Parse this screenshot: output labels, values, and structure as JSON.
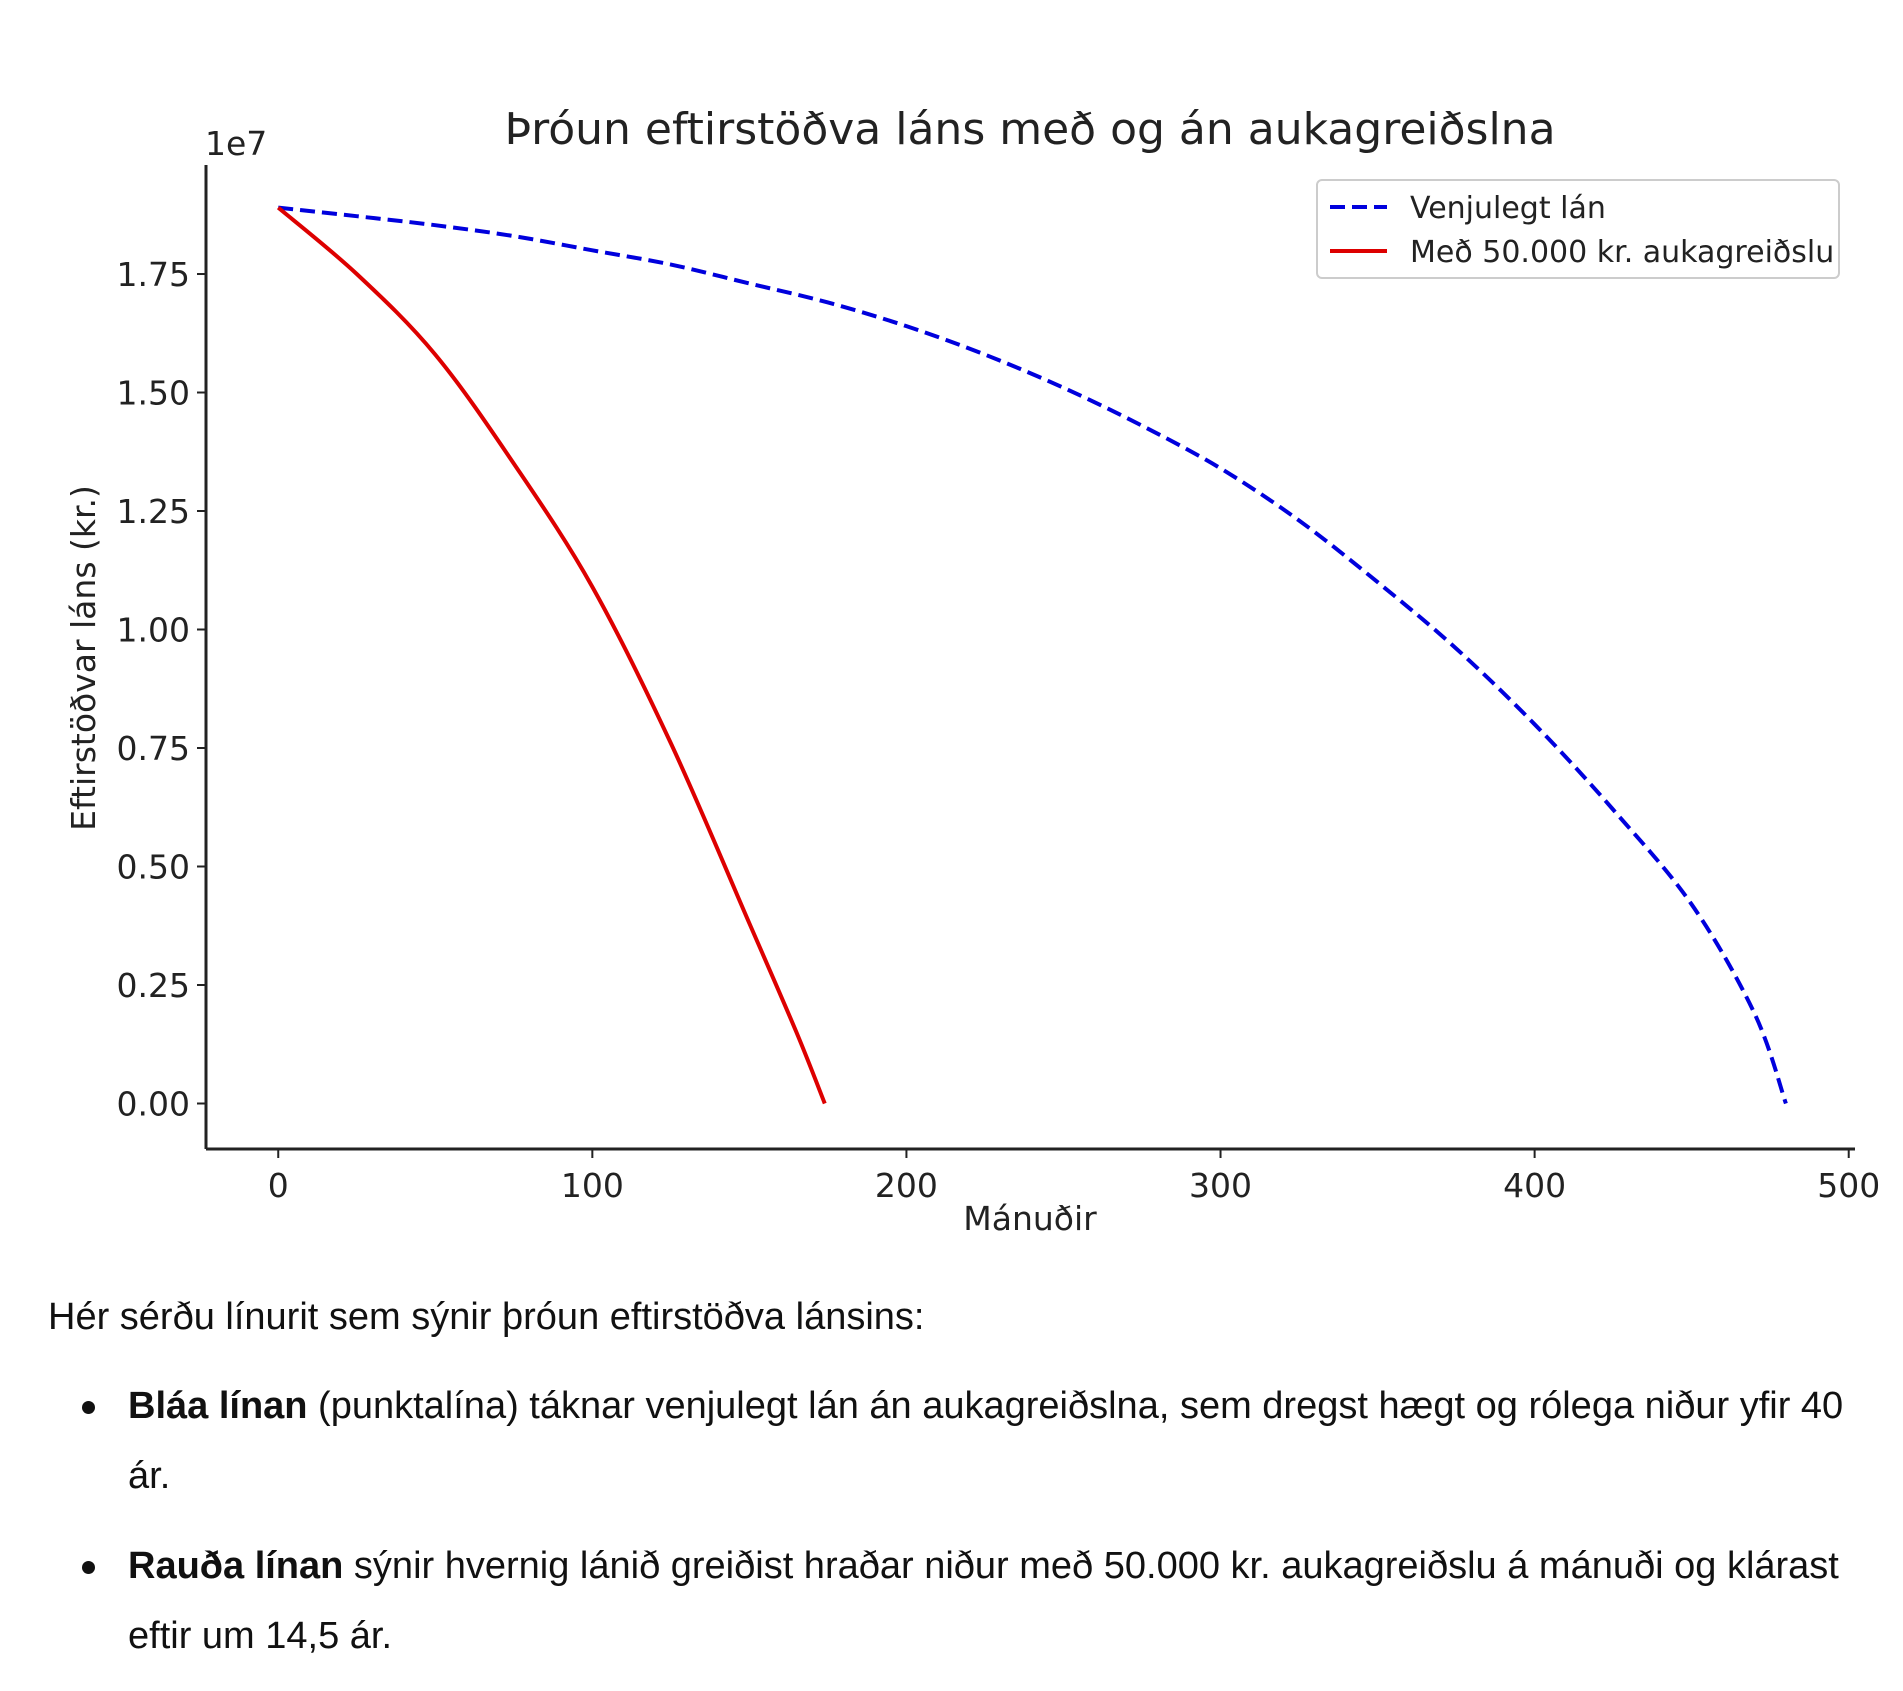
{
  "chart_data": {
    "type": "line",
    "title": "Þróun eftirstöðva láns með og án aukagreiðslna",
    "xlabel": "Mánuðir",
    "ylabel": "Eftirstöðvar láns (kr.)",
    "y_offset_text": "1e7",
    "xlim": [
      -23,
      502
    ],
    "ylim": [
      -960000,
      19800000
    ],
    "x_ticks": [
      0,
      100,
      200,
      300,
      400,
      500
    ],
    "y_ticks": [
      0,
      2500000,
      5000000,
      7500000,
      10000000,
      12500000,
      15000000,
      17500000
    ],
    "y_tick_labels": [
      "0.00",
      "0.25",
      "0.50",
      "0.75",
      "1.00",
      "1.25",
      "1.50",
      "1.75"
    ],
    "grid": false,
    "legend_position": "top-right",
    "series": [
      {
        "name": "Venjulegt lán",
        "color": "#0000dd",
        "style": "dashed",
        "x": [
          0,
          25,
          50,
          75,
          100,
          125,
          150,
          175,
          200,
          225,
          250,
          275,
          300,
          325,
          350,
          375,
          400,
          425,
          450,
          470,
          480
        ],
        "y": [
          18900000,
          18720000,
          18530000,
          18300000,
          18000000,
          17700000,
          17300000,
          16900000,
          16400000,
          15800000,
          15100000,
          14300000,
          13400000,
          12300000,
          11000000,
          9600000,
          8000000,
          6200000,
          4200000,
          1900000,
          0
        ]
      },
      {
        "name": "Með 50.000 kr. aukagreiðslu",
        "color": "#dd0000",
        "style": "solid",
        "x": [
          0,
          25,
          50,
          75,
          100,
          125,
          150,
          165,
          174
        ],
        "y": [
          18900000,
          17500000,
          15800000,
          13500000,
          10900000,
          7600000,
          3800000,
          1500000,
          0
        ]
      }
    ]
  },
  "explanation": {
    "intro": "Hér sérðu línurit sem sýnir þróun eftirstöðva lánsins:",
    "items": [
      {
        "bold": "Bláa línan",
        "rest": " (punktalína) táknar venjulegt lán án aukagreiðslna, sem dregst hægt og rólega niður yfir 40 ár."
      },
      {
        "bold": "Rauða línan",
        "rest": " sýnir hvernig lánið greiðist hraðar niður með 50.000 kr. aukagreiðslu á mánuði og klárast eftir um 14,5 ár."
      }
    ]
  }
}
